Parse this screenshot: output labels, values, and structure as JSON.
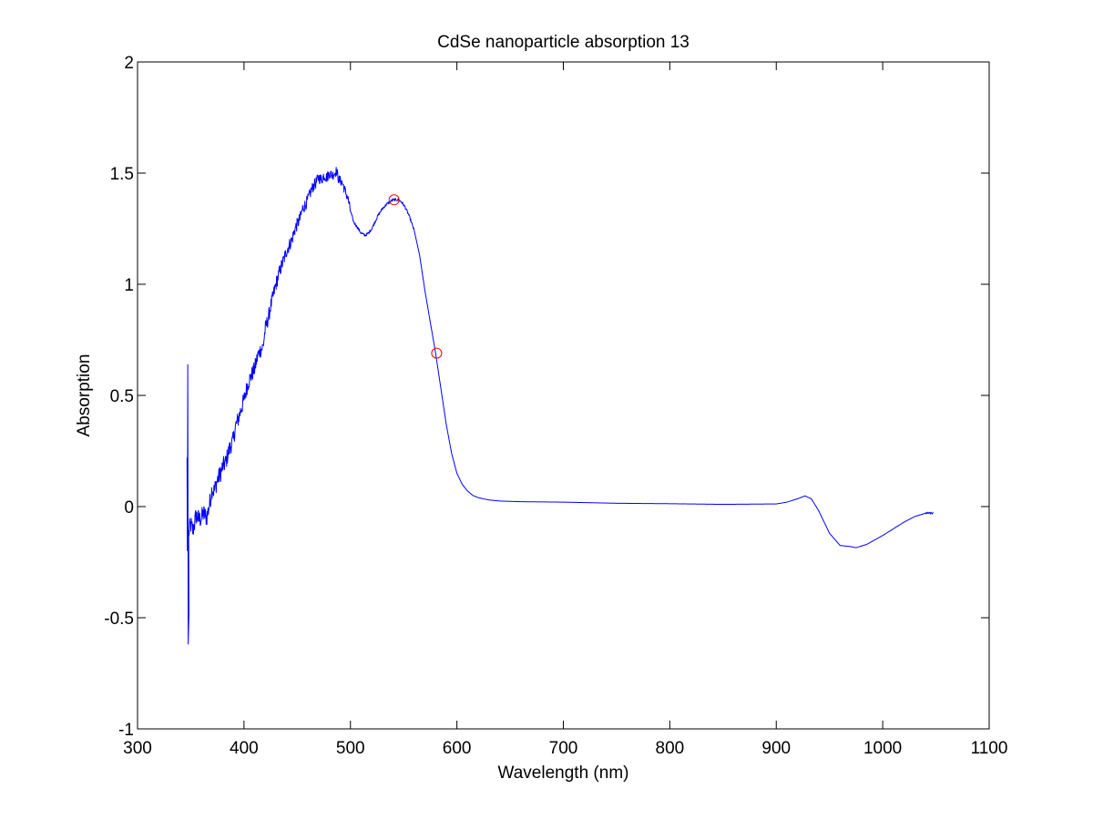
{
  "chart_data": {
    "type": "line",
    "title": "CdSe nanoparticle absorption 13",
    "xlabel": "Wavelength (nm)",
    "ylabel": "Absorption",
    "xlim": [
      300,
      1100
    ],
    "ylim": [
      -1,
      2
    ],
    "xticks": [
      300,
      400,
      500,
      600,
      700,
      800,
      900,
      1000,
      1100
    ],
    "yticks": [
      -1,
      -0.5,
      0,
      0.5,
      1,
      1.5,
      2
    ],
    "xtick_labels": [
      "300",
      "400",
      "500",
      "600",
      "700",
      "800",
      "900",
      "1000",
      "1100"
    ],
    "ytick_labels": [
      "-1",
      "-0.5",
      "0",
      "0.5",
      "1",
      "1.5",
      "2"
    ],
    "grid": false,
    "colors": {
      "line": "#0000ff",
      "markers": "#ff0000",
      "axes": "#000000",
      "background": "#ffffff"
    },
    "spikes": [
      {
        "x": 346.5,
        "y": 0.22
      },
      {
        "x": 346.8,
        "y": -0.2
      },
      {
        "x": 347.2,
        "y": 0.64
      },
      {
        "x": 347.6,
        "y": -0.62
      },
      {
        "x": 348.3,
        "y": -0.48
      }
    ],
    "series": [
      {
        "color": "#0000ff",
        "noisy_below": 500,
        "x": [
          348,
          350,
          352,
          355,
          358,
          360,
          362,
          365,
          368,
          370,
          372,
          375,
          378,
          380,
          383,
          385,
          388,
          390,
          392,
          395,
          398,
          400,
          403,
          405,
          408,
          410,
          413,
          415,
          418,
          420,
          423,
          425,
          428,
          430,
          433,
          435,
          438,
          440,
          443,
          445,
          448,
          450,
          453,
          455,
          458,
          460,
          463,
          465,
          468,
          470,
          473,
          475,
          478,
          480,
          483,
          485,
          487,
          489,
          492,
          495,
          498,
          500,
          503,
          506,
          510,
          514,
          517,
          520,
          523,
          526,
          530,
          534,
          537,
          540,
          542,
          545,
          548,
          551,
          555,
          560,
          565,
          570,
          575,
          580,
          585,
          590,
          595,
          600,
          605,
          610,
          615,
          620,
          630,
          640,
          660,
          700,
          750,
          800,
          850,
          900,
          910,
          920,
          927,
          933,
          940,
          950,
          960,
          970,
          975,
          985,
          1000,
          1010,
          1020,
          1030,
          1040,
          1048
        ],
        "y": [
          -0.12,
          -0.08,
          -0.11,
          -0.04,
          -0.06,
          -0.05,
          -0.03,
          -0.05,
          0.02,
          0.08,
          0.07,
          0.12,
          0.15,
          0.18,
          0.2,
          0.24,
          0.28,
          0.3,
          0.36,
          0.4,
          0.45,
          0.48,
          0.54,
          0.57,
          0.6,
          0.62,
          0.68,
          0.7,
          0.72,
          0.8,
          0.85,
          0.9,
          0.96,
          1.0,
          1.05,
          1.08,
          1.12,
          1.15,
          1.18,
          1.2,
          1.25,
          1.27,
          1.3,
          1.34,
          1.36,
          1.38,
          1.42,
          1.44,
          1.46,
          1.48,
          1.47,
          1.49,
          1.48,
          1.5,
          1.49,
          1.5,
          1.51,
          1.47,
          1.46,
          1.42,
          1.38,
          1.33,
          1.28,
          1.26,
          1.23,
          1.22,
          1.23,
          1.25,
          1.28,
          1.31,
          1.34,
          1.36,
          1.37,
          1.38,
          1.38,
          1.38,
          1.37,
          1.35,
          1.31,
          1.24,
          1.13,
          0.97,
          0.83,
          0.69,
          0.53,
          0.37,
          0.24,
          0.15,
          0.1,
          0.07,
          0.05,
          0.04,
          0.03,
          0.025,
          0.022,
          0.02,
          0.015,
          0.013,
          0.01,
          0.012,
          0.02,
          0.035,
          0.048,
          0.035,
          -0.02,
          -0.12,
          -0.175,
          -0.18,
          -0.185,
          -0.17,
          -0.13,
          -0.1,
          -0.07,
          -0.045,
          -0.03,
          -0.03
        ]
      }
    ],
    "markers": [
      {
        "x": 541,
        "y": 1.38,
        "shape": "circle",
        "color": "#ff0000"
      },
      {
        "x": 581,
        "y": 0.69,
        "shape": "circle",
        "color": "#ff0000"
      }
    ]
  }
}
